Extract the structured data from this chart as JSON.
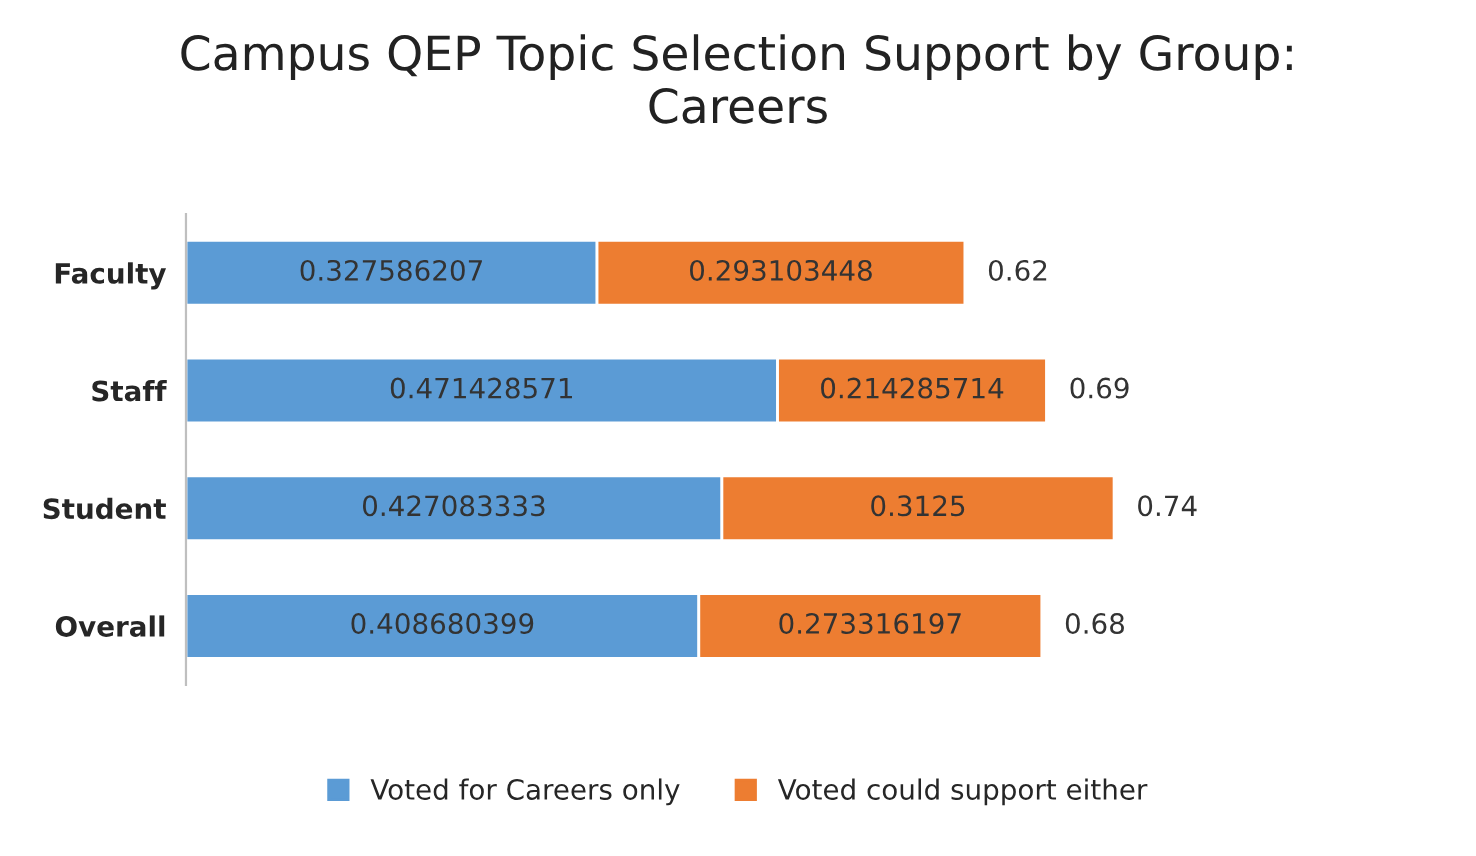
{
  "chart_data": {
    "type": "bar",
    "orientation": "horizontal",
    "stacked": true,
    "title": "Campus QEP Topic Selection Support by Group:\nCareers",
    "categories": [
      "Faculty",
      "Staff",
      "Student",
      "Overall"
    ],
    "series": [
      {
        "name": "Voted for Careers only",
        "color": "#5b9bd5",
        "values": [
          0.327586207,
          0.471428571,
          0.427083333,
          0.408680399
        ]
      },
      {
        "name": "Voted could support either",
        "color": "#ed7d31",
        "values": [
          0.293103448,
          0.214285714,
          0.3125,
          0.273316197
        ]
      }
    ],
    "totals": [
      "0.62",
      "0.69",
      "0.74",
      "0.68"
    ],
    "data_labels": true,
    "legend": "bottom",
    "grid": false,
    "tick_labels": "y"
  }
}
